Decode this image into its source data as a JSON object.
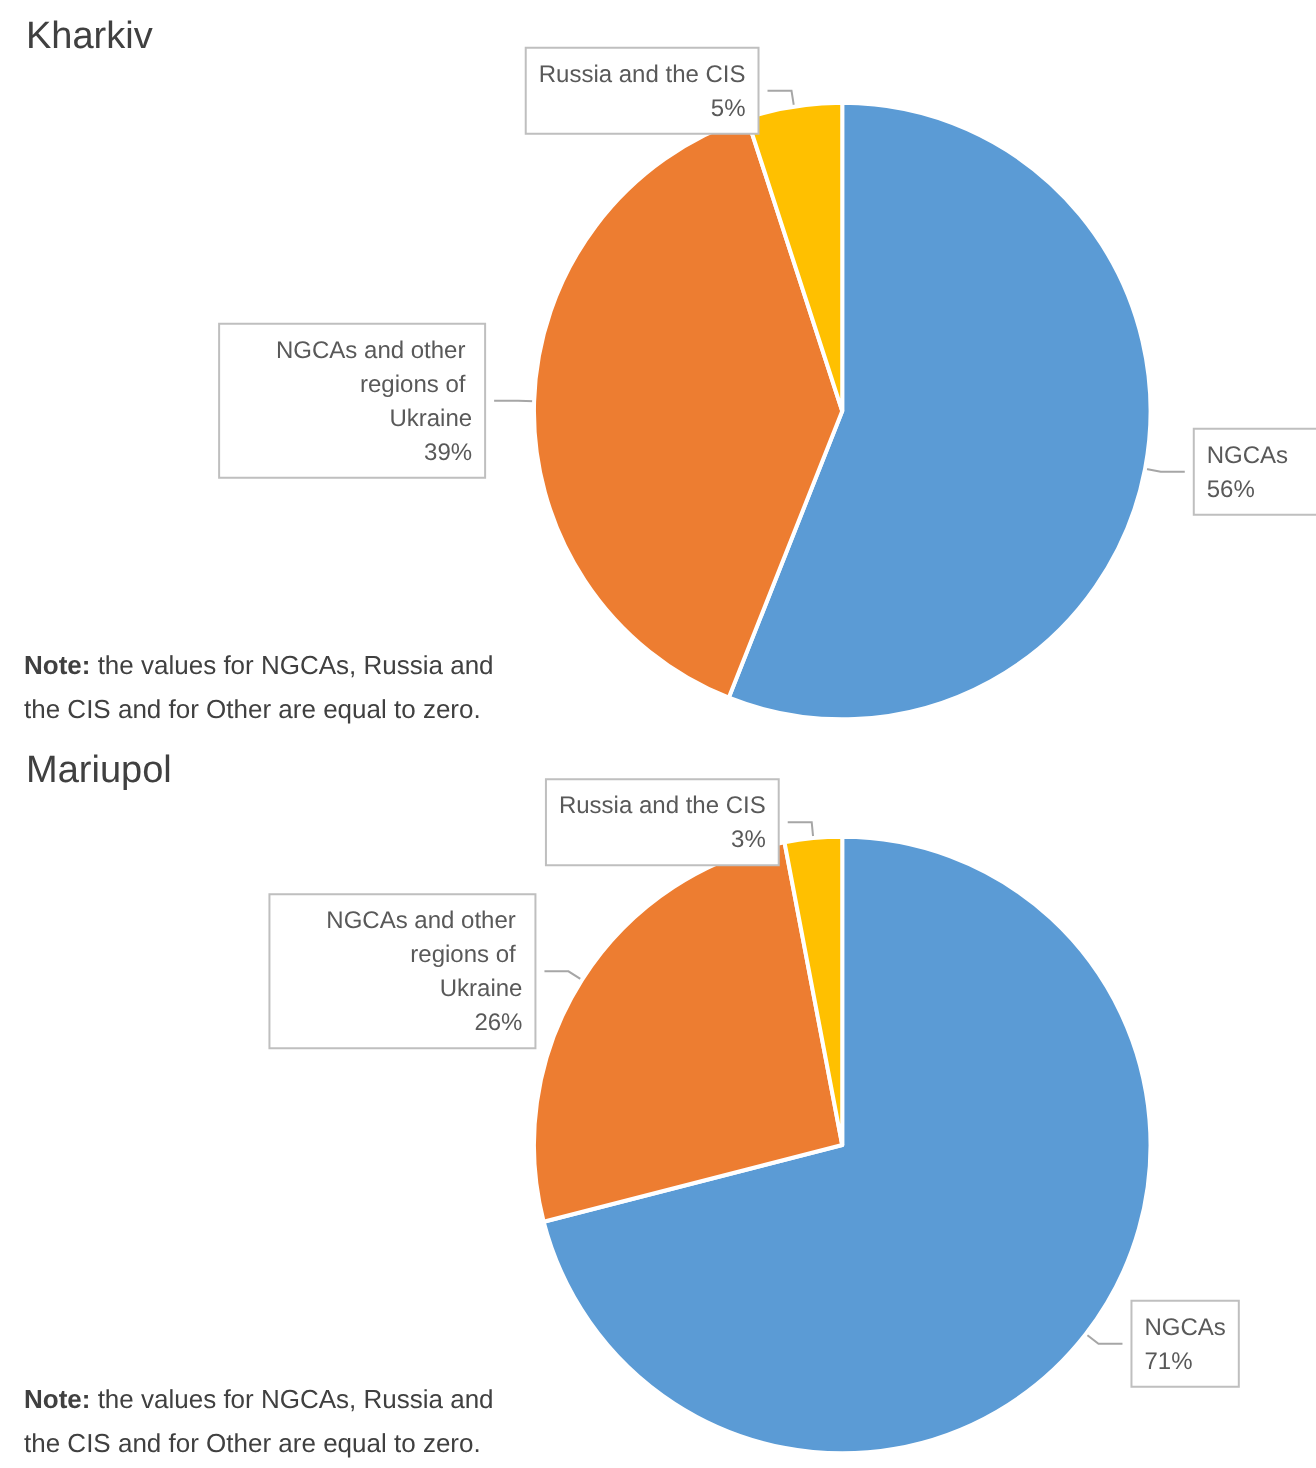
{
  "chart_data": [
    {
      "type": "pie",
      "title": "Kharkiv",
      "categories": [
        "NGCAs",
        "NGCAs and other regions of Ukraine",
        "Russia and the CIS"
      ],
      "values": [
        56,
        39,
        5
      ],
      "value_labels": [
        "56%",
        "39%",
        "5%"
      ],
      "colors": [
        "#5b9bd5",
        "#ed7d31",
        "#ffc000"
      ],
      "annotations": [
        "Note: the values for NGCAs, Russia and the CIS and for Other are equal to zero."
      ]
    },
    {
      "type": "pie",
      "title": "Mariupol",
      "categories": [
        "NGCAs",
        "NGCAs and other regions of Ukraine",
        "Russia and the CIS"
      ],
      "values": [
        71,
        26,
        3
      ],
      "value_labels": [
        "71%",
        "26%",
        "3%"
      ],
      "colors": [
        "#5b9bd5",
        "#ed7d31",
        "#ffc000"
      ],
      "annotations": [
        "Note: the values for NGCAs, Russia and the CIS and for Other are equal to zero."
      ]
    }
  ]
}
